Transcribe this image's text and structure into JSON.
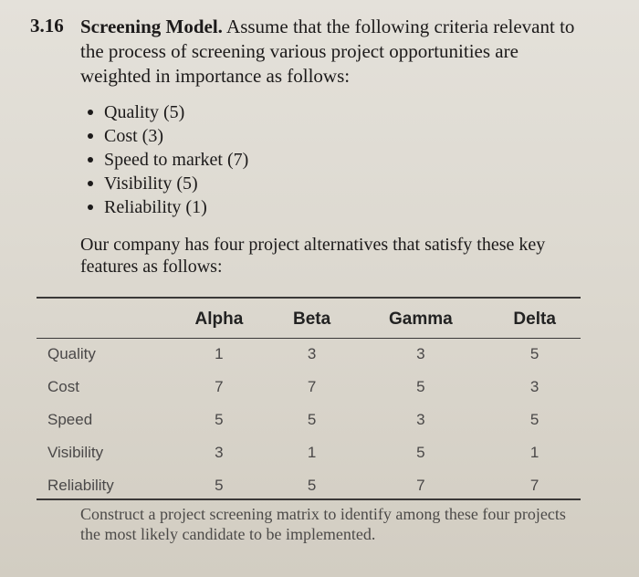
{
  "problem": {
    "number": "3.16",
    "title": "Screening Model.",
    "intro": "Assume that the following criteria relevant to the process of screening various project opportunities are weighted in importance as follows:",
    "criteria": [
      "Quality (5)",
      "Cost (3)",
      "Speed to market (7)",
      "Visibility (5)",
      "Reliability (1)"
    ],
    "paragraph": "Our company has four project alternatives that satisfy these key features as follows:",
    "closing": "Construct a project screening matrix to identify among these four projects the most likely candidate to be implemented."
  },
  "table": {
    "columns": [
      "Alpha",
      "Beta",
      "Gamma",
      "Delta"
    ],
    "rows": [
      {
        "label": "Quality",
        "values": [
          "1",
          "3",
          "3",
          "5"
        ]
      },
      {
        "label": "Cost",
        "values": [
          "7",
          "7",
          "5",
          "3"
        ]
      },
      {
        "label": "Speed",
        "values": [
          "5",
          "5",
          "3",
          "5"
        ]
      },
      {
        "label": "Visibility",
        "values": [
          "3",
          "1",
          "5",
          "1"
        ]
      },
      {
        "label": "Reliability",
        "values": [
          "5",
          "5",
          "7",
          "7"
        ]
      }
    ]
  }
}
